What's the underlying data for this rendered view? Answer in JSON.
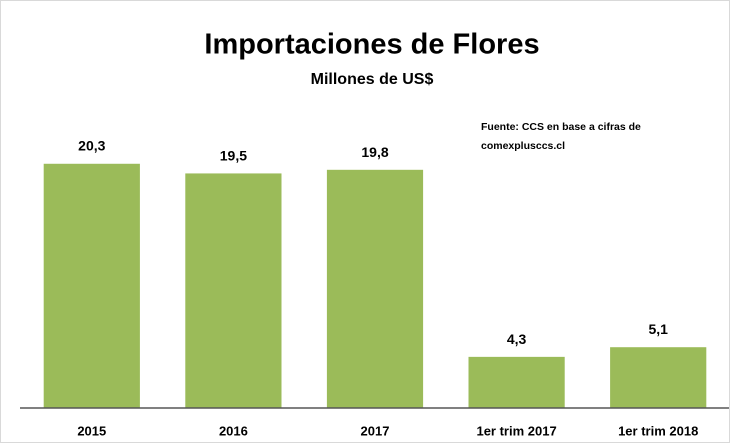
{
  "chart_data": {
    "type": "bar",
    "title": "Importaciones de Flores",
    "subtitle": "Millones de US$",
    "source": [
      "Fuente: CCS en base a cifras de",
      "comexplusccs.cl"
    ],
    "categories": [
      "2015",
      "2016",
      "2017",
      "1er trim 2017",
      "1er trim 2018"
    ],
    "values": [
      20.3,
      19.5,
      19.8,
      4.3,
      5.1
    ],
    "value_labels": [
      "20,3",
      "19,5",
      "19,8",
      "4,3",
      "5,1"
    ],
    "color": "#9bbb59",
    "ylim": [
      0,
      25
    ]
  }
}
